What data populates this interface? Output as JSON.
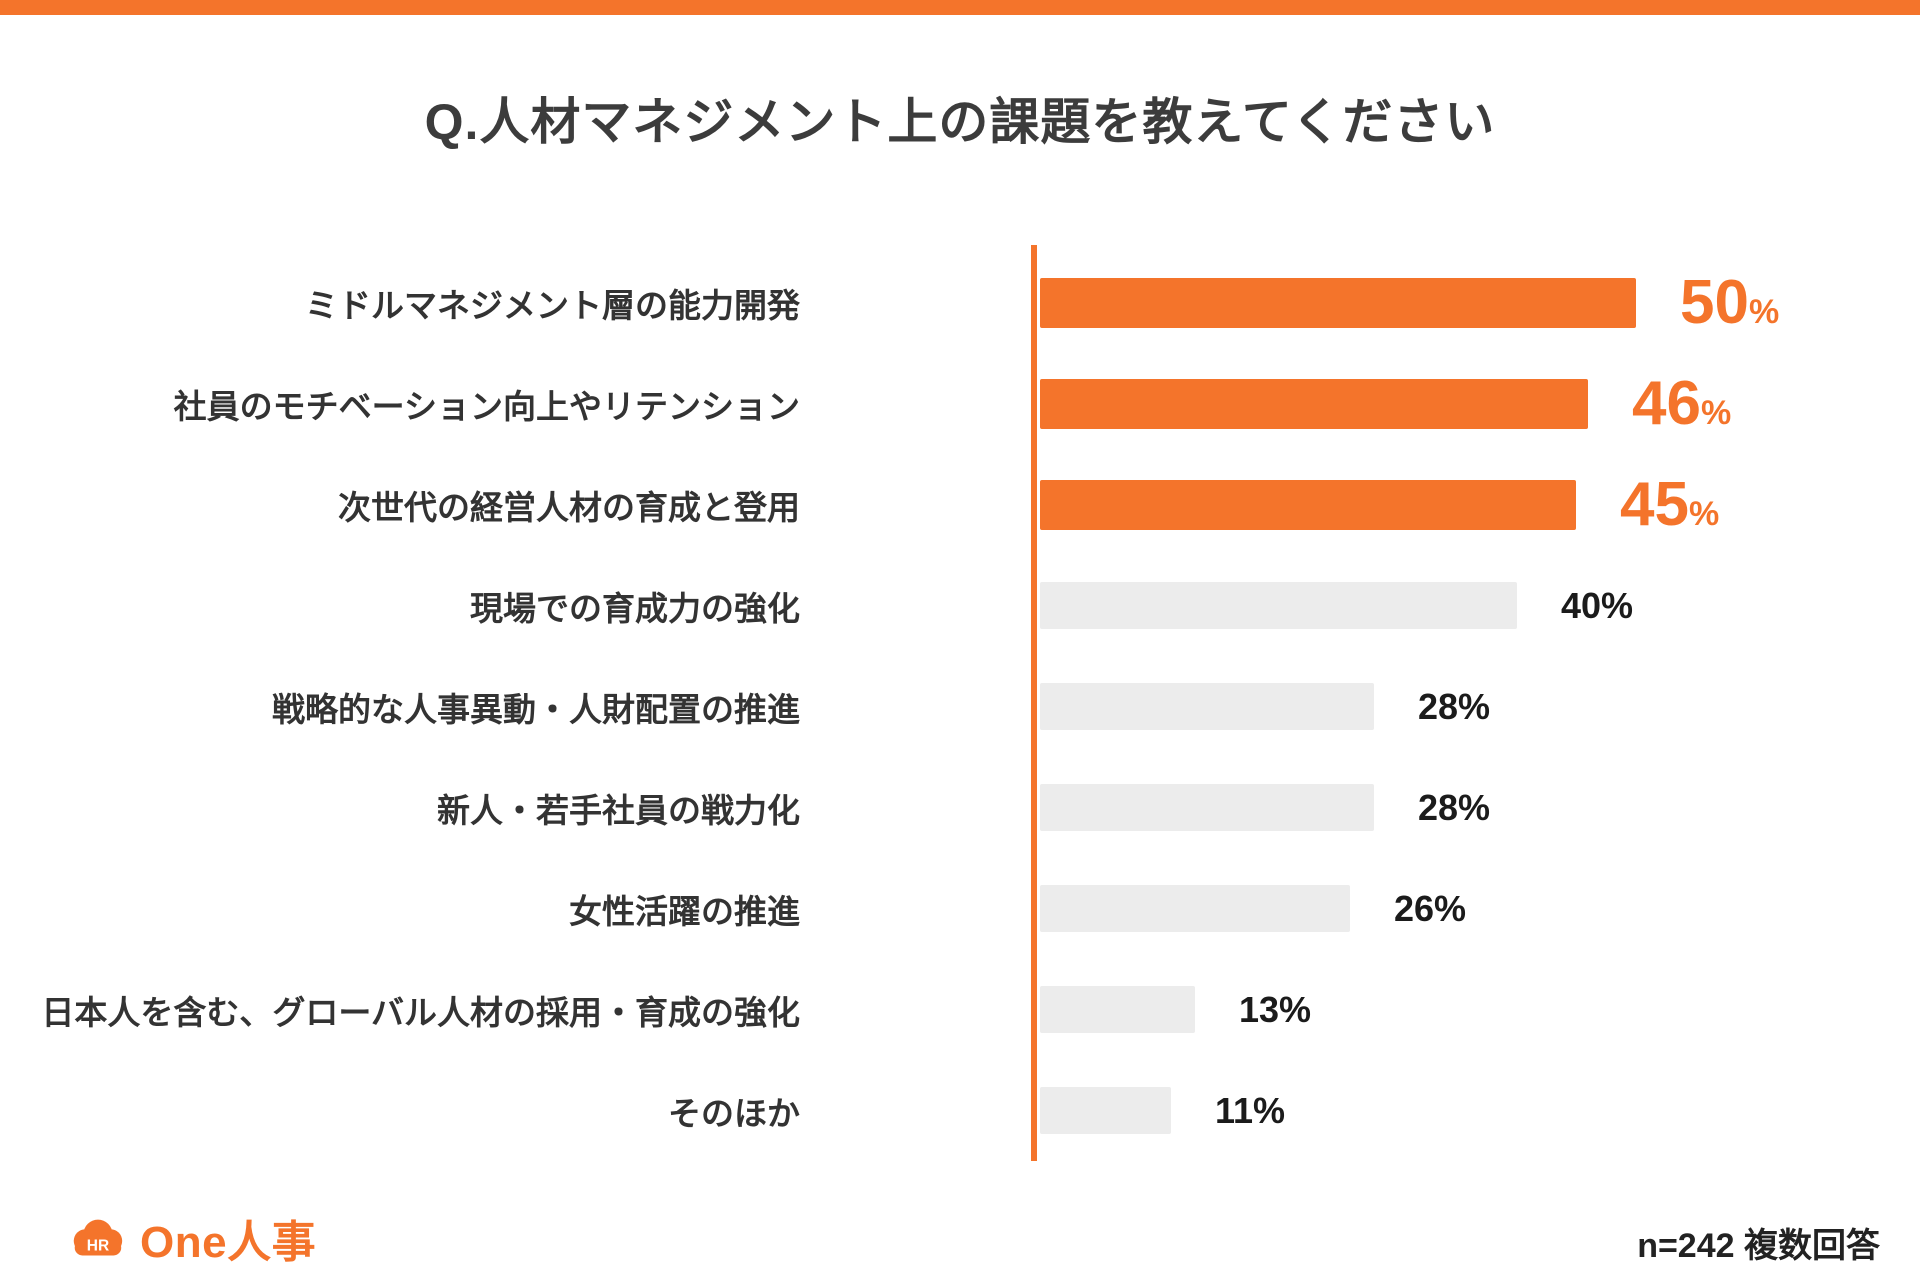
{
  "page": {
    "top_accent_color": "#F4742B",
    "background_color": "#FFFFFF"
  },
  "chart_data": {
    "type": "bar",
    "orientation": "horizontal",
    "title": "Q.人材マネジメント上の課題を教えてください",
    "categories": [
      "ミドルマネジメント層の能力開発",
      "社員のモチベーション向上やリテンション",
      "次世代の経営人材の育成と登用",
      "現場での育成力の強化",
      "戦略的な人事異動・人財配置の推進",
      "新人・若手社員の戦力化",
      "女性活躍の推進",
      "日本人を含む、グローバル人材の採用・育成の強化",
      "そのほか"
    ],
    "values": [
      50,
      46,
      45,
      40,
      28,
      28,
      26,
      13,
      11
    ],
    "unit": "%",
    "highlighted_count": 3,
    "xlim": [
      0,
      50
    ],
    "grid": false,
    "legend": "none",
    "colors": {
      "highlight_bar": "#F4742B",
      "default_bar": "#ECECEC",
      "highlight_value": "#F4742B",
      "default_value": "#1B1B1B",
      "axis": "#F4742B"
    }
  },
  "footer": {
    "logo_icon": "hr-cloud-icon",
    "logo_icon_text": "HR",
    "logo_text": "One人事",
    "note": "n=242 複数回答"
  }
}
